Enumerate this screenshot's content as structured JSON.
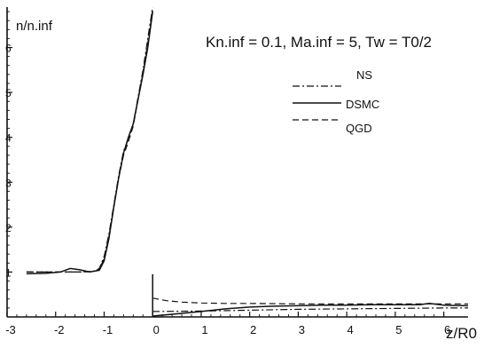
{
  "chart_data": {
    "type": "line",
    "title": "Kn.inf = 0.1, Ma.inf = 5, Tw = T0/2",
    "ylabel": "n/n.inf",
    "xlabel": "z/R0",
    "xlim": [
      -3,
      6.5
    ],
    "ylim": [
      0,
      6.9
    ],
    "x_ticks": [
      -3,
      -2,
      -1,
      0,
      1,
      2,
      3,
      4,
      5,
      6
    ],
    "y_ticks": [
      1,
      2,
      3,
      4,
      5,
      6
    ],
    "grid": false,
    "legend_position": "top-right",
    "series": [
      {
        "name": "NS",
        "style": "dashdot",
        "segments": [
          {
            "x": [
              -2.6,
              -2.0,
              -1.5,
              -1.2,
              -1.1,
              -1.0,
              -0.9,
              -0.8,
              -0.7,
              -0.6,
              -0.5,
              -0.4,
              -0.3,
              -0.2,
              -0.1,
              0.0
            ],
            "y": [
              1.0,
              1.0,
              1.0,
              1.02,
              1.08,
              1.35,
              1.85,
              2.5,
              3.15,
              3.7,
              3.95,
              4.3,
              4.9,
              5.5,
              6.2,
              6.9
            ]
          },
          {
            "x": [
              0.0,
              1.0,
              2.0,
              3.0,
              4.0,
              5.0,
              6.0,
              6.5
            ],
            "y": [
              0.12,
              0.13,
              0.15,
              0.17,
              0.18,
              0.19,
              0.2,
              0.2
            ]
          }
        ]
      },
      {
        "name": "DSMC",
        "style": "solid",
        "segments": [
          {
            "x": [
              -2.6,
              -2.2,
              -1.9,
              -1.7,
              -1.5,
              -1.3,
              -1.1,
              -1.0,
              -0.9,
              -0.8,
              -0.7,
              -0.6,
              -0.5,
              -0.4,
              -0.3,
              -0.2,
              -0.1,
              0.0
            ],
            "y": [
              0.96,
              0.97,
              1.0,
              1.08,
              1.05,
              1.0,
              1.04,
              1.25,
              1.75,
              2.45,
              3.1,
              3.65,
              4.0,
              4.3,
              4.85,
              5.4,
              6.0,
              6.8
            ]
          },
          {
            "x": [
              0.0,
              0.0,
              0.5,
              1.0,
              1.5,
              2.0,
              2.5,
              3.0,
              3.5,
              4.0,
              4.5,
              5.0,
              5.5,
              5.7,
              6.0,
              6.5
            ],
            "y": [
              0.95,
              0.02,
              0.07,
              0.12,
              0.18,
              0.22,
              0.24,
              0.25,
              0.26,
              0.26,
              0.27,
              0.27,
              0.27,
              0.3,
              0.26,
              0.25
            ]
          }
        ]
      },
      {
        "name": "QGD",
        "style": "dashed",
        "segments": [
          {
            "x": [
              -2.6,
              -2.0,
              -1.5,
              -1.2,
              -1.1,
              -1.0,
              -0.9,
              -0.8,
              -0.7,
              -0.6,
              -0.5,
              -0.4,
              -0.3,
              -0.2,
              -0.1,
              0.0
            ],
            "y": [
              1.0,
              1.0,
              1.0,
              1.01,
              1.06,
              1.3,
              1.8,
              2.45,
              3.1,
              3.6,
              3.9,
              4.25,
              4.85,
              5.45,
              6.1,
              6.85
            ]
          },
          {
            "x": [
              0.0,
              0.3,
              0.6,
              1.0,
              1.5,
              2.0,
              3.0,
              4.0,
              5.0,
              6.0,
              6.5
            ],
            "y": [
              0.42,
              0.36,
              0.33,
              0.31,
              0.3,
              0.3,
              0.29,
              0.29,
              0.29,
              0.29,
              0.29
            ]
          }
        ]
      }
    ]
  }
}
